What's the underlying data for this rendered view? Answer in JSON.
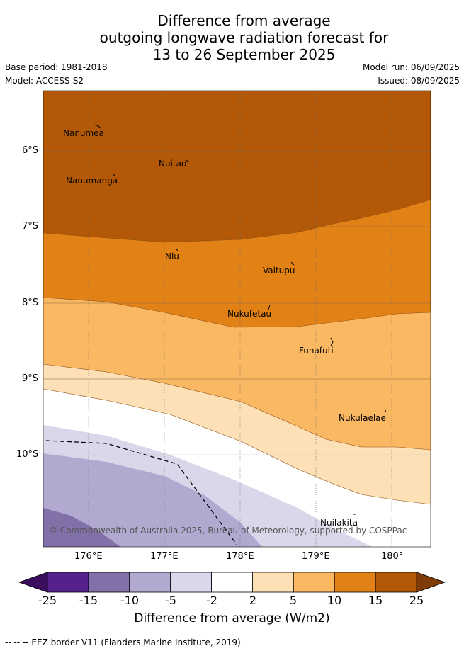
{
  "title": {
    "line1": "Difference from average",
    "line2": "outgoing longwave radiation forecast for",
    "line3": "13 to 26 September 2025"
  },
  "meta": {
    "base_period": "Base period: 1981-2018",
    "model": "Model: ACCESS-S2",
    "model_run": "Model run: 06/09/2025",
    "issued": "Issued: 08/09/2025"
  },
  "map": {
    "lat_labels": [
      "6°S",
      "7°S",
      "8°S",
      "9°S",
      "10°S"
    ],
    "lon_labels": [
      "176°E",
      "177°E",
      "178°E",
      "179°E",
      "180°"
    ],
    "places": [
      "Nanumea",
      "Nuitao",
      "Nanumanga",
      "Niu",
      "Vaitupu",
      "Nukufetau",
      "Funafuti",
      "Nukulaelae",
      "Nuilakita"
    ],
    "copyright": "© Commonwealth of Australia 2025, Bureau of Meteorology, supported by COSPPac"
  },
  "colorbar": {
    "ticks": [
      "-25",
      "-15",
      "-10",
      "-5",
      "-2",
      "2",
      "5",
      "10",
      "15",
      "25"
    ],
    "colors": [
      "#55228c",
      "#8270a8",
      "#b2a9d0",
      "#d9d8eb",
      "#ffffff",
      "#fde0b6",
      "#fbb862",
      "#e28116",
      "#b35806"
    ],
    "under_color": "#3a0d5e",
    "over_color": "#7f3b08",
    "title": "Difference from average (W/m2)"
  },
  "legend": {
    "eez": "--  --  -- EEZ border V11 (Flanders Marine Institute, 2019)."
  }
}
